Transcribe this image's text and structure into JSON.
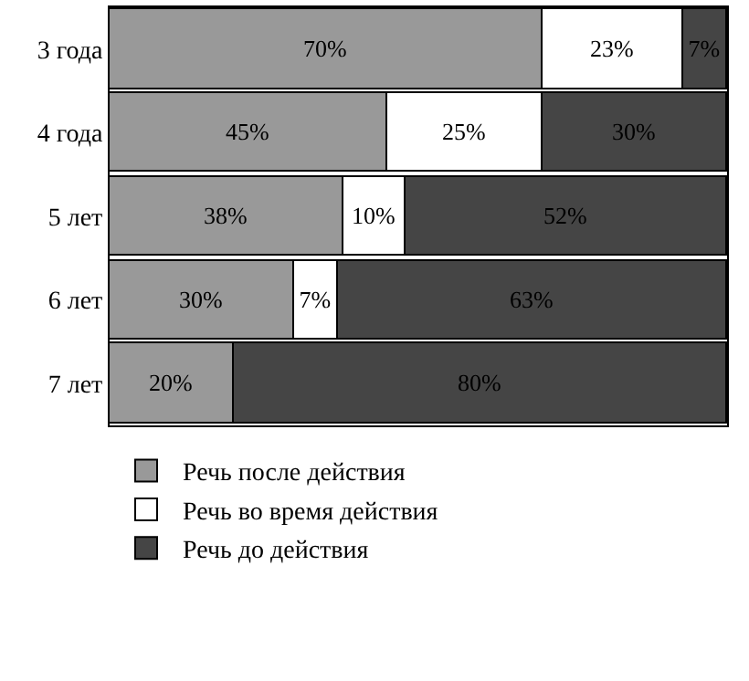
{
  "chart_data": {
    "type": "bar",
    "orientation": "horizontal",
    "stacked": true,
    "categories": [
      "3 года",
      "4 года",
      "5 лет",
      "6 лет",
      "7 лет"
    ],
    "series": [
      {
        "name": "Речь после действия",
        "color": "#999999",
        "values": [
          70,
          45,
          38,
          30,
          20
        ],
        "value_labels": [
          "70%",
          "45%",
          "38%",
          "30%",
          "20%"
        ]
      },
      {
        "name": "Речь во время действия",
        "color": "#ffffff",
        "values": [
          23,
          25,
          10,
          7,
          0
        ],
        "value_labels": [
          "23%",
          "25%",
          "10%",
          "7%",
          null
        ]
      },
      {
        "name": "Речь до действия",
        "color": "#454545",
        "values": [
          7,
          30,
          52,
          63,
          80
        ],
        "value_labels": [
          "7%",
          "30%",
          "52%",
          "63%",
          "80%"
        ]
      }
    ],
    "xlim": [
      0,
      100
    ],
    "tick_labels": "y",
    "legend": "bottom left"
  }
}
